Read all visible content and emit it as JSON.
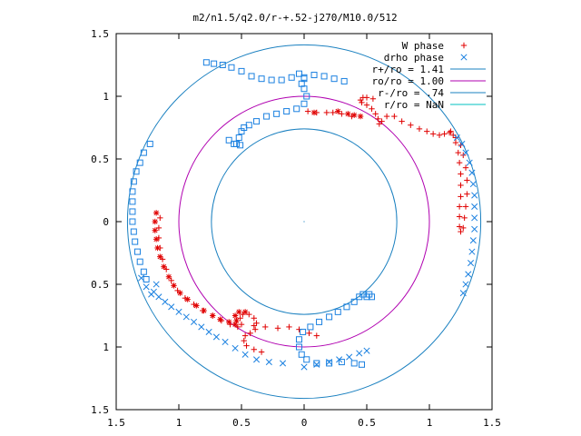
{
  "chart_data": {
    "type": "scatter",
    "title": "m2/n1.5/q2.0/r-+.52-j270/M10.0/512",
    "xlim": [
      -1.5,
      1.5
    ],
    "ylim": [
      -1.5,
      1.5
    ],
    "x_ticks": [
      {
        "value": -1.5,
        "label": "1.5"
      },
      {
        "value": -1.0,
        "label": "1"
      },
      {
        "value": -0.5,
        "label": "0.5"
      },
      {
        "value": 0,
        "label": "0"
      },
      {
        "value": 0.5,
        "label": "0.5"
      },
      {
        "value": 1.0,
        "label": "1"
      },
      {
        "value": 1.5,
        "label": "1.5"
      }
    ],
    "y_ticks": [
      {
        "value": 1.5,
        "label": "1.5"
      },
      {
        "value": 1.0,
        "label": "1"
      },
      {
        "value": 0.5,
        "label": "0.5"
      },
      {
        "value": 0,
        "label": "0"
      },
      {
        "value": -0.5,
        "label": "0.5"
      },
      {
        "value": -1.0,
        "label": "1"
      },
      {
        "value": -1.5,
        "label": "1.5"
      }
    ],
    "grid": false,
    "legend": "top-right",
    "circles": [
      {
        "name": "r+/ro = 1.41",
        "radius": 1.41,
        "color": "#1a80c0"
      },
      {
        "name": "ro/ro = 1.00",
        "radius": 1.0,
        "color": "#b000b0"
      },
      {
        "name": "r-/ro = .74",
        "radius": 0.74,
        "color": "#1a80c0"
      },
      {
        "name": "r/ro = NaN",
        "radius": null,
        "color": "#00c0c0"
      }
    ],
    "series": [
      {
        "name": "W phase",
        "marker": "plus",
        "color": "#e00000",
        "points": [
          [
            0.55,
            0.98
          ],
          [
            0.5,
            0.99
          ],
          [
            0.47,
            0.99
          ],
          [
            0.45,
            0.97
          ],
          [
            0.46,
            0.95
          ],
          [
            0.5,
            0.93
          ],
          [
            0.54,
            0.9
          ],
          [
            0.57,
            0.86
          ],
          [
            0.59,
            0.82
          ],
          [
            0.6,
            0.78
          ],
          [
            0.62,
            0.8
          ],
          [
            0.66,
            0.84
          ],
          [
            0.72,
            0.84
          ],
          [
            0.78,
            0.8
          ],
          [
            0.85,
            0.77
          ],
          [
            0.92,
            0.74
          ],
          [
            0.98,
            0.72
          ],
          [
            1.03,
            0.7
          ],
          [
            1.08,
            0.69
          ],
          [
            1.12,
            0.7
          ],
          [
            1.16,
            0.71
          ],
          [
            1.19,
            0.69
          ],
          [
            1.21,
            0.63
          ],
          [
            1.23,
            0.55
          ],
          [
            1.24,
            0.47
          ],
          [
            1.25,
            0.38
          ],
          [
            1.25,
            0.29
          ],
          [
            1.25,
            0.2
          ],
          [
            1.24,
            0.12
          ],
          [
            1.24,
            0.04
          ],
          [
            1.24,
            -0.04
          ],
          [
            1.25,
            -0.08
          ],
          [
            1.27,
            -0.05
          ],
          [
            1.28,
            0.03
          ],
          [
            1.29,
            0.12
          ],
          [
            1.3,
            0.22
          ],
          [
            1.3,
            0.33
          ],
          [
            1.29,
            0.43
          ],
          [
            1.27,
            0.53
          ],
          [
            1.25,
            0.61
          ],
          [
            1.21,
            0.67
          ],
          [
            1.17,
            0.72
          ],
          [
            0.38,
            0.84
          ],
          [
            0.3,
            0.86
          ],
          [
            0.1,
            0.87
          ],
          [
            0.03,
            0.88
          ],
          [
            0.18,
            0.87
          ],
          [
            0.23,
            0.87
          ],
          [
            -1.15,
            0.03
          ],
          [
            -1.16,
            -0.05
          ],
          [
            -1.16,
            -0.13
          ],
          [
            -1.15,
            -0.21
          ],
          [
            -1.13,
            -0.3
          ],
          [
            -1.1,
            -0.38
          ],
          [
            -1.06,
            -0.47
          ],
          [
            -1.01,
            -0.55
          ],
          [
            -0.95,
            -0.61
          ],
          [
            -0.88,
            -0.66
          ],
          [
            -0.81,
            -0.71
          ],
          [
            -0.73,
            -0.75
          ],
          [
            -0.66,
            -0.79
          ],
          [
            -0.59,
            -0.82
          ],
          [
            -0.53,
            -0.84
          ],
          [
            -0.5,
            -0.82
          ],
          [
            -0.51,
            -0.77
          ],
          [
            -0.49,
            -0.74
          ],
          [
            -0.44,
            -0.74
          ],
          [
            -0.4,
            -0.77
          ],
          [
            -0.38,
            -0.81
          ],
          [
            -0.39,
            -0.86
          ],
          [
            -0.43,
            -0.89
          ],
          [
            -0.47,
            -0.91
          ],
          [
            -0.48,
            -0.95
          ],
          [
            -0.46,
            -0.99
          ],
          [
            -0.4,
            -1.02
          ],
          [
            -0.34,
            -1.04
          ],
          [
            -0.4,
            -0.83
          ],
          [
            -0.31,
            -0.84
          ],
          [
            -0.21,
            -0.85
          ],
          [
            -0.12,
            -0.84
          ],
          [
            -0.04,
            -0.86
          ],
          [
            0.04,
            -0.89
          ],
          [
            0.1,
            -0.91
          ]
        ]
      },
      {
        "name": "drho phase",
        "marker": "cross",
        "color": "#1a80e0",
        "points": [
          [
            1.22,
            0.67
          ],
          [
            1.26,
            0.62
          ],
          [
            1.29,
            0.55
          ],
          [
            1.32,
            0.47
          ],
          [
            1.34,
            0.39
          ],
          [
            1.35,
            0.3
          ],
          [
            1.36,
            0.21
          ],
          [
            1.36,
            0.12
          ],
          [
            1.36,
            0.03
          ],
          [
            1.36,
            -0.06
          ],
          [
            1.35,
            -0.15
          ],
          [
            1.34,
            -0.24
          ],
          [
            1.33,
            -0.33
          ],
          [
            1.31,
            -0.42
          ],
          [
            1.29,
            -0.5
          ],
          [
            1.27,
            -0.57
          ],
          [
            -1.18,
            -0.5
          ],
          [
            -1.2,
            -0.56
          ],
          [
            -1.16,
            -0.6
          ],
          [
            -1.11,
            -0.64
          ],
          [
            -1.06,
            -0.68
          ],
          [
            -1.0,
            -0.72
          ],
          [
            -0.94,
            -0.76
          ],
          [
            -0.88,
            -0.8
          ],
          [
            -0.82,
            -0.84
          ],
          [
            -0.76,
            -0.88
          ],
          [
            -0.7,
            -0.92
          ],
          [
            -0.63,
            -0.96
          ],
          [
            -0.55,
            -1.01
          ],
          [
            -0.47,
            -1.06
          ],
          [
            -0.38,
            -1.1
          ],
          [
            -0.28,
            -1.12
          ],
          [
            -0.17,
            -1.13
          ],
          [
            0.0,
            -1.16
          ],
          [
            0.1,
            -1.14
          ],
          [
            0.2,
            -1.12
          ],
          [
            0.28,
            -1.1
          ],
          [
            0.36,
            -1.08
          ],
          [
            0.44,
            -1.05
          ],
          [
            0.5,
            -1.03
          ],
          [
            -1.3,
            -0.45
          ],
          [
            -1.26,
            -0.52
          ],
          [
            -1.22,
            -0.58
          ]
        ]
      }
    ],
    "series_extra": [
      {
        "name": "W phase",
        "marker": "star",
        "points": [
          [
            -1.18,
            0.07
          ],
          [
            -1.19,
            0.0
          ],
          [
            -1.19,
            -0.07
          ],
          [
            -1.18,
            -0.14
          ],
          [
            -1.17,
            -0.21
          ],
          [
            -1.15,
            -0.28
          ],
          [
            -1.12,
            -0.36
          ],
          [
            -1.08,
            -0.44
          ],
          [
            -1.04,
            -0.51
          ],
          [
            -0.99,
            -0.57
          ],
          [
            -0.93,
            -0.62
          ],
          [
            -0.86,
            -0.67
          ],
          [
            -0.8,
            -0.71
          ],
          [
            -0.73,
            -0.75
          ],
          [
            -0.67,
            -0.78
          ],
          [
            -0.6,
            -0.8
          ],
          [
            -0.55,
            -0.82
          ],
          [
            -0.54,
            -0.79
          ],
          [
            -0.55,
            -0.75
          ],
          [
            -0.52,
            -0.72
          ],
          [
            -0.47,
            -0.72
          ],
          [
            0.08,
            0.87
          ],
          [
            0.27,
            0.88
          ],
          [
            0.35,
            0.86
          ],
          [
            0.4,
            0.85
          ],
          [
            0.45,
            0.84
          ]
        ]
      },
      {
        "name": "drho phase",
        "marker": "square",
        "points": [
          [
            -0.04,
            1.18
          ],
          [
            -0.1,
            1.15
          ],
          [
            -0.18,
            1.13
          ],
          [
            -0.26,
            1.13
          ],
          [
            -0.34,
            1.14
          ],
          [
            -0.42,
            1.16
          ],
          [
            -0.5,
            1.2
          ],
          [
            -0.58,
            1.23
          ],
          [
            -0.65,
            1.25
          ],
          [
            -0.72,
            1.26
          ],
          [
            -0.78,
            1.27
          ],
          [
            0.0,
            1.15
          ],
          [
            0.08,
            1.17
          ],
          [
            0.16,
            1.16
          ],
          [
            0.24,
            1.14
          ],
          [
            0.32,
            1.12
          ],
          [
            -0.54,
            0.62
          ],
          [
            -0.52,
            0.67
          ],
          [
            -0.5,
            0.72
          ],
          [
            -0.48,
            0.75
          ],
          [
            -0.44,
            0.77
          ],
          [
            -0.38,
            0.8
          ],
          [
            -0.3,
            0.84
          ],
          [
            -0.22,
            0.86
          ],
          [
            -0.14,
            0.88
          ],
          [
            -0.06,
            0.9
          ],
          [
            0.0,
            0.94
          ],
          [
            0.02,
            1.0
          ],
          [
            0.0,
            1.06
          ],
          [
            -0.02,
            1.1
          ],
          [
            0.0,
            1.14
          ],
          [
            -0.6,
            0.65
          ],
          [
            -0.56,
            0.62
          ],
          [
            -0.51,
            0.61
          ],
          [
            -1.23,
            0.62
          ],
          [
            -1.28,
            0.55
          ],
          [
            -1.31,
            0.47
          ],
          [
            -1.34,
            0.4
          ],
          [
            -1.36,
            0.32
          ],
          [
            -1.37,
            0.24
          ],
          [
            -1.37,
            0.16
          ],
          [
            -1.37,
            0.08
          ],
          [
            -1.37,
            0.0
          ],
          [
            -1.36,
            -0.08
          ],
          [
            -1.35,
            -0.16
          ],
          [
            -1.33,
            -0.24
          ],
          [
            -1.31,
            -0.32
          ],
          [
            -1.28,
            -0.4
          ],
          [
            -1.26,
            -0.46
          ],
          [
            0.5,
            -0.6
          ],
          [
            0.47,
            -0.58
          ],
          [
            0.44,
            -0.6
          ],
          [
            0.4,
            -0.64
          ],
          [
            0.34,
            -0.68
          ],
          [
            0.27,
            -0.72
          ],
          [
            0.2,
            -0.76
          ],
          [
            0.12,
            -0.8
          ],
          [
            0.05,
            -0.84
          ],
          [
            -0.01,
            -0.88
          ],
          [
            -0.04,
            -0.94
          ],
          [
            -0.04,
            -1.0
          ],
          [
            -0.02,
            -1.06
          ],
          [
            0.02,
            -1.1
          ],
          [
            0.1,
            -1.13
          ],
          [
            0.2,
            -1.13
          ],
          [
            0.3,
            -1.12
          ],
          [
            0.4,
            -1.13
          ],
          [
            0.46,
            -1.14
          ],
          [
            0.54,
            -0.6
          ],
          [
            0.52,
            -0.58
          ]
        ]
      }
    ]
  }
}
